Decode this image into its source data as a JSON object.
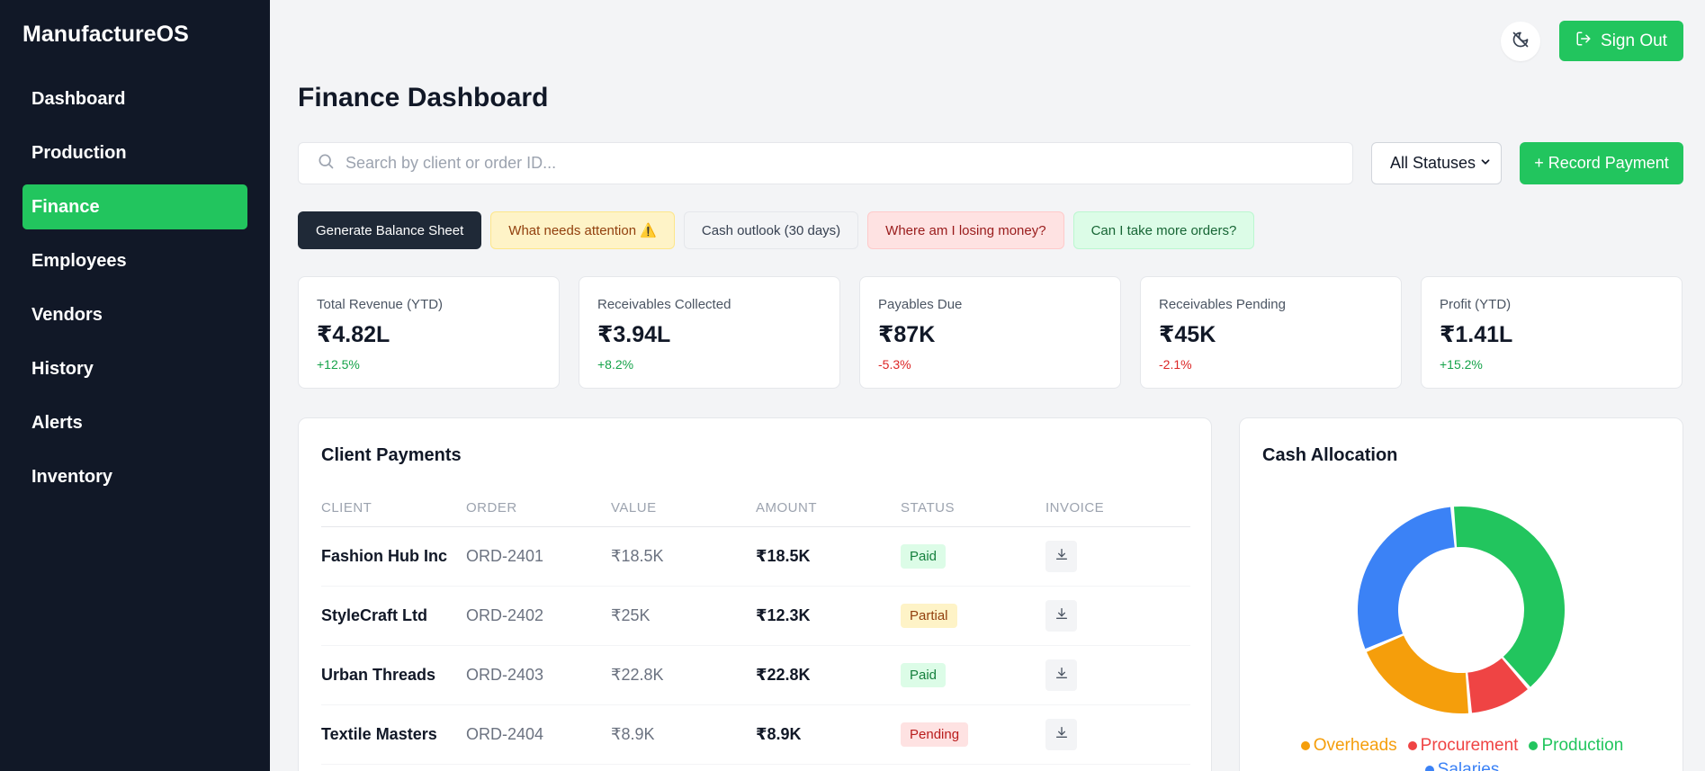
{
  "sidebar": {
    "brand": "ManufactureOS",
    "items": [
      {
        "label": "Dashboard",
        "active": false
      },
      {
        "label": "Production",
        "active": false
      },
      {
        "label": "Finance",
        "active": true
      },
      {
        "label": "Employees",
        "active": false
      },
      {
        "label": "Vendors",
        "active": false
      },
      {
        "label": "History",
        "active": false
      },
      {
        "label": "Alerts",
        "active": false
      },
      {
        "label": "Inventory",
        "active": false
      }
    ]
  },
  "header": {
    "sign_out_label": "Sign Out",
    "page_title": "Finance Dashboard"
  },
  "toolbar": {
    "search_placeholder": "Search by client or order ID...",
    "status_filter": "All Statuses",
    "record_payment_label": "+ Record Payment"
  },
  "chips": [
    {
      "label": "Generate Balance Sheet"
    },
    {
      "label": "What needs attention ⚠️"
    },
    {
      "label": "Cash outlook (30 days)"
    },
    {
      "label": "Where am I losing money?"
    },
    {
      "label": "Can I take more orders?"
    }
  ],
  "stats": [
    {
      "label": "Total Revenue (YTD)",
      "value": "₹4.82L",
      "change": "+12.5%"
    },
    {
      "label": "Receivables Collected",
      "value": "₹3.94L",
      "change": "+8.2%"
    },
    {
      "label": "Payables Due",
      "value": "₹87K",
      "change": "-5.3%"
    },
    {
      "label": "Receivables Pending",
      "value": "₹45K",
      "change": "-2.1%"
    },
    {
      "label": "Profit (YTD)",
      "value": "₹1.41L",
      "change": "+15.2%"
    }
  ],
  "payments": {
    "title": "Client Payments",
    "columns": [
      "CLIENT",
      "ORDER",
      "VALUE",
      "AMOUNT",
      "STATUS",
      "INVOICE"
    ],
    "rows": [
      {
        "client": "Fashion Hub Inc",
        "order": "ORD-2401",
        "value": "₹18.5K",
        "amount": "₹18.5K",
        "status": "Paid"
      },
      {
        "client": "StyleCraft Ltd",
        "order": "ORD-2402",
        "value": "₹25K",
        "amount": "₹12.3K",
        "status": "Partial"
      },
      {
        "client": "Urban Threads",
        "order": "ORD-2403",
        "value": "₹22.8K",
        "amount": "₹22.8K",
        "status": "Paid"
      },
      {
        "client": "Textile Masters",
        "order": "ORD-2404",
        "value": "₹8.9K",
        "amount": "₹8.9K",
        "status": "Pending"
      }
    ]
  },
  "cash_allocation": {
    "title": "Cash Allocation",
    "legend": [
      {
        "name": "Overheads",
        "color": "#f59e0b"
      },
      {
        "name": "Procurement",
        "color": "#ef4444"
      },
      {
        "name": "Production",
        "color": "#22c55e"
      },
      {
        "name": "Salaries",
        "color": "#3b82f6"
      }
    ]
  },
  "chart_data": {
    "type": "pie",
    "title": "Cash Allocation",
    "categories": [
      "Production",
      "Procurement",
      "Overheads",
      "Salaries"
    ],
    "values": [
      40,
      10,
      20,
      30
    ],
    "colors": [
      "#22c55e",
      "#ef4444",
      "#f59e0b",
      "#3b82f6"
    ],
    "legend": "bottom"
  }
}
